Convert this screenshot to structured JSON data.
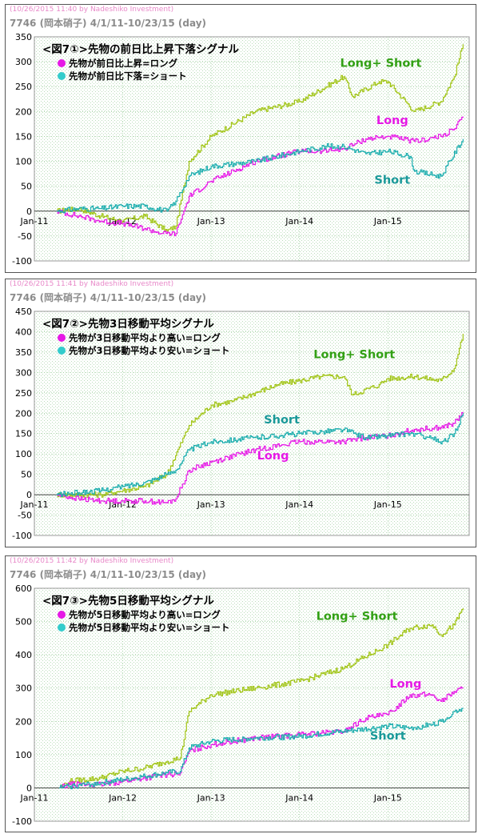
{
  "panels": [
    {
      "timestamp": "(10/26/2015 11:40 by Nadeshiko Investment)",
      "ticker_title": "7746 (岡本硝子) 4/1/11-10/23/15 (day)",
      "chart_data": {
        "type": "line",
        "title": "<図7①>先物の前日比上昇下落シグナル",
        "legend": [
          {
            "label": "先物が前日比上昇=ロング",
            "color": "#e619e6"
          },
          {
            "label": "先物が前日比下落=ショート",
            "color": "#33cccc"
          }
        ],
        "legend_position": "top-left",
        "grid": true,
        "ylim": [
          -100,
          350
        ],
        "yticks": [
          -100,
          -50,
          0,
          50,
          100,
          150,
          200,
          250,
          300,
          350
        ],
        "xticks": [
          "Jan-11",
          "Jan-12",
          "Jan-13",
          "Jan-14",
          "Jan-15"
        ],
        "xlim": [
          0,
          4.92
        ],
        "series": [
          {
            "name": "Long+ Short",
            "color": "#a0c414",
            "x": [
              0.25,
              0.5,
              0.75,
              1.0,
              1.25,
              1.5,
              1.6,
              1.75,
              2.0,
              2.5,
              3.0,
              3.5,
              3.6,
              3.9,
              4.0,
              4.3,
              4.6,
              4.75,
              4.85
            ],
            "y": [
              0,
              5,
              -10,
              -20,
              -10,
              -40,
              -30,
              100,
              150,
              200,
              220,
              270,
              230,
              260,
              260,
              200,
              220,
              270,
              335
            ]
          },
          {
            "name": "Long",
            "color": "#e619e6",
            "x": [
              0.25,
              0.5,
              0.75,
              1.0,
              1.25,
              1.45,
              1.6,
              1.75,
              2.0,
              2.5,
              3.0,
              3.25,
              3.5,
              3.75,
              4.0,
              4.3,
              4.6,
              4.75,
              4.85
            ],
            "y": [
              0,
              -10,
              -20,
              -25,
              -35,
              -45,
              -45,
              30,
              60,
              100,
              120,
              120,
              125,
              145,
              150,
              140,
              150,
              165,
              190
            ]
          },
          {
            "name": "Short",
            "color": "#1aadad",
            "x": [
              0.25,
              0.5,
              0.75,
              1.0,
              1.25,
              1.5,
              1.6,
              1.75,
              2.0,
              2.5,
              3.0,
              3.3,
              3.5,
              3.75,
              4.0,
              4.25,
              4.3,
              4.6,
              4.85
            ],
            "y": [
              0,
              5,
              5,
              10,
              10,
              0,
              20,
              70,
              90,
              100,
              120,
              130,
              130,
              115,
              120,
              110,
              80,
              70,
              145
            ]
          }
        ],
        "annotations": [
          {
            "text": "Long+ Short",
            "x": 3.92,
            "y": 290,
            "color": "#32a014"
          },
          {
            "text": "Long",
            "x": 4.05,
            "y": 175,
            "color": "#e619e6"
          },
          {
            "text": "Short",
            "x": 4.05,
            "y": 55,
            "color": "#1a9999"
          }
        ]
      }
    },
    {
      "timestamp": "(10/26/2015 11:41 by Nadeshiko Investment)",
      "ticker_title": "7746 (岡本硝子) 4/1/11-10/23/15 (day)",
      "chart_data": {
        "type": "line",
        "title": "<図7②>先物3日移動平均シグナル",
        "legend": [
          {
            "label": "先物が3日移動平均より高い=ロング",
            "color": "#e619e6"
          },
          {
            "label": "先物が3日移動平均より安い=ショート",
            "color": "#33cccc"
          }
        ],
        "legend_position": "top-left",
        "grid": true,
        "ylim": [
          -100,
          450
        ],
        "yticks": [
          -100,
          -50,
          0,
          50,
          100,
          150,
          200,
          250,
          300,
          350,
          400,
          450
        ],
        "xticks": [
          "Jan-11",
          "Jan-12",
          "Jan-13",
          "Jan-14",
          "Jan-15"
        ],
        "xlim": [
          0,
          4.92
        ],
        "series": [
          {
            "name": "Long+ Short",
            "color": "#a0c414",
            "x": [
              0.25,
              0.5,
              0.75,
              1.0,
              1.25,
              1.5,
              1.75,
              2.0,
              2.25,
              2.5,
              2.75,
              3.0,
              3.25,
              3.5,
              3.6,
              3.9,
              4.0,
              4.3,
              4.6,
              4.75,
              4.85
            ],
            "y": [
              0,
              0,
              0,
              10,
              20,
              50,
              170,
              220,
              230,
              250,
              270,
              280,
              290,
              290,
              245,
              270,
              285,
              290,
              280,
              310,
              395
            ]
          },
          {
            "name": "Long",
            "color": "#e619e6",
            "x": [
              0.25,
              0.5,
              0.75,
              1.0,
              1.25,
              1.5,
              1.6,
              1.75,
              2.0,
              2.5,
              3.0,
              3.5,
              3.75,
              4.0,
              4.3,
              4.6,
              4.75,
              4.85
            ],
            "y": [
              0,
              -10,
              -15,
              -15,
              -15,
              -20,
              -10,
              60,
              80,
              110,
              130,
              130,
              140,
              145,
              160,
              165,
              175,
              200
            ]
          },
          {
            "name": "Short",
            "color": "#1aadad",
            "x": [
              0.25,
              0.5,
              0.75,
              1.0,
              1.25,
              1.5,
              1.6,
              1.75,
              2.0,
              2.5,
              3.0,
              3.25,
              3.5,
              3.75,
              4.0,
              4.25,
              4.5,
              4.6,
              4.75,
              4.85
            ],
            "y": [
              0,
              5,
              10,
              20,
              30,
              50,
              60,
              110,
              130,
              140,
              150,
              155,
              160,
              140,
              145,
              150,
              140,
              125,
              150,
              200
            ]
          }
        ],
        "annotations": [
          {
            "text": "Long+ Short",
            "x": 3.62,
            "y": 335,
            "color": "#32a014"
          },
          {
            "text": "Short",
            "x": 2.8,
            "y": 175,
            "color": "#1a9999"
          },
          {
            "text": "Long",
            "x": 2.7,
            "y": 87,
            "color": "#e619e6"
          }
        ]
      }
    },
    {
      "timestamp": "(10/26/2015 11:42 by Nadeshiko Investment)",
      "ticker_title": "7746 (岡本硝子) 4/1/11-10/23/15 (day)",
      "chart_data": {
        "type": "line",
        "title": "<図7③>先物5日移動平均シグナル",
        "legend": [
          {
            "label": "先物が5日移動平均より高い=ロング",
            "color": "#e619e6"
          },
          {
            "label": "先物が5日移動平均より安い=ショート",
            "color": "#33cccc"
          }
        ],
        "legend_position": "top-left",
        "grid": true,
        "ylim": [
          -100,
          600
        ],
        "yticks": [
          -100,
          0,
          100,
          200,
          300,
          400,
          500,
          600
        ],
        "xticks": [
          "Jan-11",
          "Jan-12",
          "Jan-13",
          "Jan-14",
          "Jan-15"
        ],
        "xlim": [
          0,
          4.92
        ],
        "series": [
          {
            "name": "Long+ Short",
            "color": "#a0c414",
            "x": [
              0.28,
              0.4,
              0.75,
              1.0,
              1.25,
              1.5,
              1.65,
              1.75,
              2.0,
              2.5,
              3.0,
              3.5,
              4.0,
              4.25,
              4.5,
              4.6,
              4.75,
              4.85
            ],
            "y": [
              0,
              20,
              30,
              50,
              60,
              80,
              90,
              230,
              280,
              300,
              320,
              360,
              430,
              480,
              490,
              460,
              490,
              540
            ]
          },
          {
            "name": "Long",
            "color": "#e619e6",
            "x": [
              0.28,
              0.4,
              0.75,
              1.0,
              1.25,
              1.5,
              1.65,
              1.75,
              2.0,
              2.5,
              3.0,
              3.5,
              3.75,
              4.0,
              4.25,
              4.5,
              4.6,
              4.75,
              4.85
            ],
            "y": [
              0,
              10,
              10,
              20,
              30,
              40,
              45,
              110,
              130,
              150,
              160,
              170,
              210,
              220,
              280,
              280,
              260,
              290,
              300
            ]
          },
          {
            "name": "Short",
            "color": "#1aadad",
            "x": [
              0.28,
              0.4,
              0.75,
              1.0,
              1.25,
              1.5,
              1.65,
              1.75,
              2.0,
              2.5,
              3.0,
              3.5,
              4.0,
              4.25,
              4.5,
              4.6,
              4.75,
              4.85
            ],
            "y": [
              0,
              5,
              15,
              25,
              35,
              45,
              50,
              120,
              140,
              150,
              155,
              170,
              185,
              180,
              190,
              200,
              230,
              240
            ]
          }
        ],
        "annotations": [
          {
            "text": "Long+ Short",
            "x": 3.65,
            "y": 505,
            "color": "#32a014"
          },
          {
            "text": "Long",
            "x": 4.2,
            "y": 302,
            "color": "#e619e6"
          },
          {
            "text": "Short",
            "x": 4.0,
            "y": 145,
            "color": "#1a9999"
          }
        ]
      }
    }
  ]
}
